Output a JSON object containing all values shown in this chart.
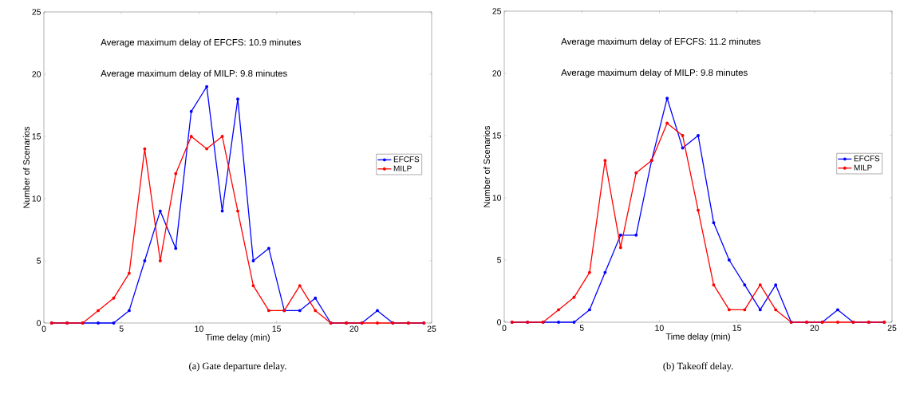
{
  "chart_data": [
    {
      "type": "line",
      "title": "(a)  Gate departure delay.",
      "xlabel": "Time delay (min)",
      "ylabel": "Number of Scenarios",
      "annotations": [
        "Average maximum delay of EFCFS: 10.9 minutes",
        "Average maximum delay of MILP: 9.8 minutes"
      ],
      "x": [
        0.5,
        1.5,
        2.5,
        3.5,
        4.5,
        5.5,
        6.5,
        7.5,
        8.5,
        9.5,
        10.5,
        11.5,
        12.5,
        13.5,
        14.5,
        15.5,
        16.5,
        17.5,
        18.5,
        19.5,
        20.5,
        21.5,
        22.5,
        23.5,
        24.5
      ],
      "series": [
        {
          "name": "EFCFS",
          "color": "#0000ff",
          "values": [
            0,
            0,
            0,
            0,
            0,
            1,
            5,
            9,
            6,
            17,
            19,
            9,
            18,
            5,
            6,
            1,
            1,
            2,
            0,
            0,
            0,
            1,
            0,
            0,
            0
          ]
        },
        {
          "name": "MILP",
          "color": "#ff0000",
          "values": [
            0,
            0,
            0,
            1,
            2,
            4,
            14,
            5,
            12,
            15,
            14,
            15,
            9,
            3,
            1,
            1,
            3,
            1,
            0,
            0,
            0,
            0,
            0,
            0,
            0
          ]
        }
      ],
      "xlim": [
        0,
        25
      ],
      "ylim": [
        0,
        25
      ],
      "xticks": [
        0,
        5,
        10,
        15,
        20,
        25
      ],
      "yticks": [
        0,
        5,
        10,
        15,
        20,
        25
      ],
      "legend": "right",
      "marker": "circle",
      "line_style": "solid"
    },
    {
      "type": "line",
      "title": "(b)  Takeoff delay.",
      "xlabel": "Time delay (min)",
      "ylabel": "Number of Scenarios",
      "annotations": [
        "Average maximum delay of EFCFS: 11.2 minutes",
        "Average maximum delay of MILP: 9.8 minutes"
      ],
      "x": [
        0.5,
        1.5,
        2.5,
        3.5,
        4.5,
        5.5,
        6.5,
        7.5,
        8.5,
        9.5,
        10.5,
        11.5,
        12.5,
        13.5,
        14.5,
        15.5,
        16.5,
        17.5,
        18.5,
        19.5,
        20.5,
        21.5,
        22.5,
        23.5,
        24.5
      ],
      "series": [
        {
          "name": "EFCFS",
          "color": "#0000ff",
          "values": [
            0,
            0,
            0,
            0,
            0,
            1,
            4,
            7,
            7,
            13,
            18,
            14,
            15,
            8,
            5,
            3,
            1,
            3,
            0,
            0,
            0,
            1,
            0,
            0,
            0
          ]
        },
        {
          "name": "MILP",
          "color": "#ff0000",
          "values": [
            0,
            0,
            0,
            1,
            2,
            4,
            13,
            6,
            12,
            13,
            16,
            15,
            9,
            3,
            1,
            1,
            3,
            1,
            0,
            0,
            0,
            0,
            0,
            0,
            0
          ]
        }
      ],
      "xlim": [
        0,
        25
      ],
      "ylim": [
        0,
        25
      ],
      "xticks": [
        0,
        5,
        10,
        15,
        20,
        25
      ],
      "yticks": [
        0,
        5,
        10,
        15,
        20,
        25
      ],
      "legend": "right",
      "marker": "circle",
      "line_style": "solid"
    }
  ]
}
